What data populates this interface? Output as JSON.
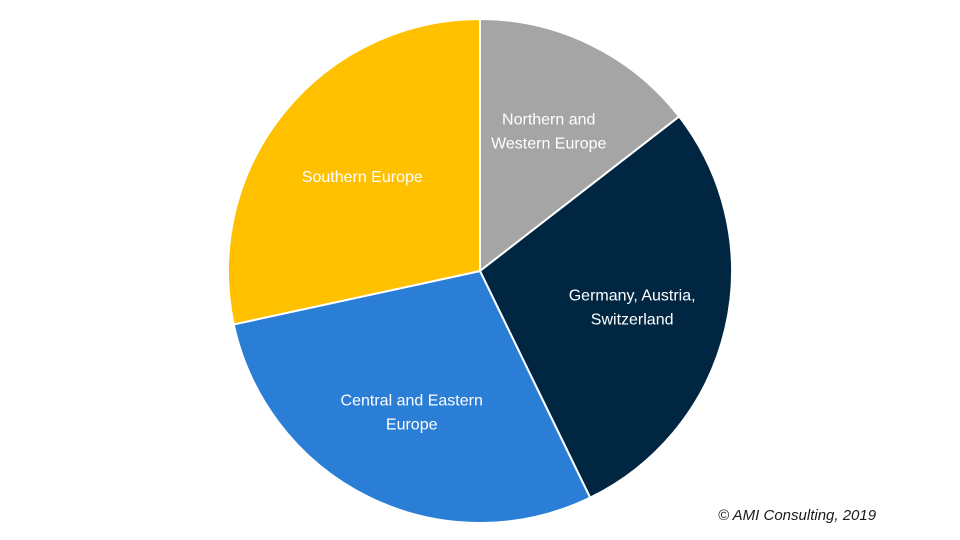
{
  "chart_data": {
    "type": "pie",
    "slices": [
      {
        "label": "Northern and Western Europe",
        "label_lines": [
          "Northern and",
          "Western Europe"
        ],
        "value": 14.5,
        "color": "#A5A5A5"
      },
      {
        "label": "Germany, Austria, Switzerland",
        "label_lines": [
          "Germany, Austria,",
          "Switzerland"
        ],
        "value": 28.3,
        "color": "#002642"
      },
      {
        "label": "Central and Eastern Europe",
        "label_lines": [
          "Central and Eastern",
          "Europe"
        ],
        "value": 28.8,
        "color": "#2B7ED6"
      },
      {
        "label": "Southern Europe",
        "label_lines": [
          "Southern Europe"
        ],
        "value": 28.4,
        "color": "#FFC000"
      }
    ],
    "start_angle": "top",
    "direction": "clockwise",
    "legend": "none",
    "data_labels": "inside"
  },
  "footer": {
    "credit": "© AMI Consulting, 2019"
  }
}
